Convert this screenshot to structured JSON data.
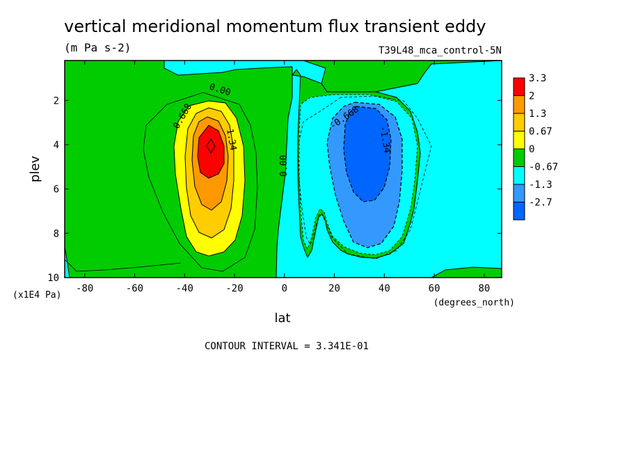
{
  "chart_data": {
    "type": "heatmap",
    "title": "vertical meridional momentum flux transient eddy",
    "units": "(m Pa s-2)",
    "dataset": "T39L48_mca_control-5N",
    "xlabel": "lat",
    "x_units": "(degrees_north)",
    "ylabel": "plev",
    "y_units": "(x1E4 Pa)",
    "xlim": [
      -88,
      87
    ],
    "ylim": [
      10,
      0.2
    ],
    "x_ticks": [
      -80,
      -60,
      -40,
      -20,
      0,
      20,
      40,
      60,
      80
    ],
    "y_ticks": [
      2,
      4,
      6,
      8,
      10
    ],
    "contour_interval_text": "CONTOUR INTERVAL = 3.341E-01",
    "contour_labels": [
      "0.00",
      "0.668",
      "1.34",
      "0.00",
      "-0.668",
      "-1.34"
    ],
    "colorbar": {
      "labels": [
        "3.3",
        "2",
        "1.3",
        "0.67",
        "0",
        "-0.67",
        "-1.3",
        "-2.7"
      ],
      "colors": [
        "#ff0000",
        "#ff9900",
        "#ffcc00",
        "#ffff00",
        "#00cc00",
        "#00ffff",
        "#3399ff",
        "#0066ff"
      ]
    },
    "features": [
      {
        "name": "positive maximum",
        "lat": -29,
        "plev": 4.0,
        "value": 3.3
      },
      {
        "name": "negative minimum",
        "lat": 32,
        "plev": 4.2,
        "value": -2.7
      }
    ]
  }
}
